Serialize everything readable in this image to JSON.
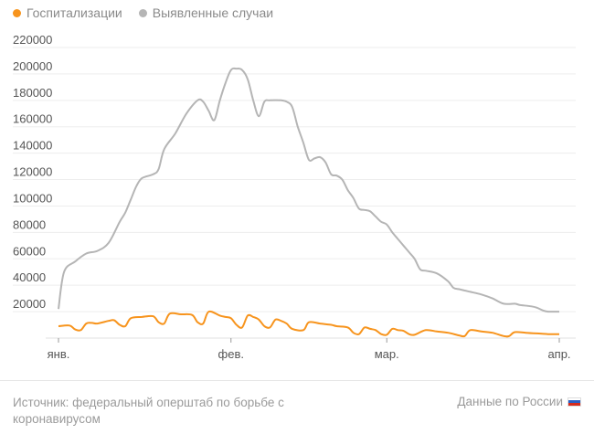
{
  "legend": {
    "items": [
      {
        "label": "Госпитализации",
        "color": "#f7941d"
      },
      {
        "label": "Выявленные случаи",
        "color": "#b5b5b5"
      }
    ]
  },
  "footer": {
    "source": "Источник: федеральный оперштаб по борьбе с коронавирусом",
    "region": "Данные по России",
    "flag_icon": "russia-flag-icon"
  },
  "chart_data": {
    "type": "line",
    "x_ticks": [
      {
        "label": "янв.",
        "day": 0
      },
      {
        "label": "фев.",
        "day": 31
      },
      {
        "label": "мар.",
        "day": 59
      },
      {
        "label": "апр.",
        "day": 90
      }
    ],
    "y_ticks": [
      20000,
      40000,
      60000,
      80000,
      100000,
      120000,
      140000,
      160000,
      180000,
      200000,
      220000
    ],
    "ylim": [
      0,
      220000
    ],
    "series": [
      {
        "name": "Выявленные случаи",
        "color": "#b5b5b5",
        "values": [
          [
            0,
            22000
          ],
          [
            1,
            50000
          ],
          [
            3,
            58000
          ],
          [
            5,
            64000
          ],
          [
            7,
            66000
          ],
          [
            9,
            72000
          ],
          [
            11,
            88000
          ],
          [
            12,
            95000
          ],
          [
            13,
            105000
          ],
          [
            14,
            115000
          ],
          [
            15,
            121000
          ],
          [
            17,
            124000
          ],
          [
            18,
            128000
          ],
          [
            19,
            143000
          ],
          [
            21,
            155000
          ],
          [
            23,
            170000
          ],
          [
            25,
            180000
          ],
          [
            26,
            179000
          ],
          [
            27,
            172000
          ],
          [
            28,
            165000
          ],
          [
            29,
            180000
          ],
          [
            30,
            193000
          ],
          [
            31,
            203000
          ],
          [
            32,
            204000
          ],
          [
            33,
            203000
          ],
          [
            34,
            196000
          ],
          [
            35,
            180000
          ],
          [
            36,
            168000
          ],
          [
            37,
            179000
          ],
          [
            38,
            180000
          ],
          [
            40,
            180000
          ],
          [
            41,
            179000
          ],
          [
            42,
            175000
          ],
          [
            43,
            160000
          ],
          [
            44,
            148000
          ],
          [
            45,
            135000
          ],
          [
            46,
            136000
          ],
          [
            47,
            137000
          ],
          [
            48,
            133000
          ],
          [
            49,
            124000
          ],
          [
            50,
            123000
          ],
          [
            51,
            120000
          ],
          [
            52,
            112000
          ],
          [
            53,
            106000
          ],
          [
            54,
            98000
          ],
          [
            55,
            97000
          ],
          [
            56,
            96000
          ],
          [
            57,
            92000
          ],
          [
            58,
            88000
          ],
          [
            59,
            86000
          ],
          [
            60,
            80000
          ],
          [
            61,
            75000
          ],
          [
            62,
            70000
          ],
          [
            63,
            65000
          ],
          [
            64,
            60000
          ],
          [
            65,
            52000
          ],
          [
            66,
            51000
          ],
          [
            68,
            49000
          ],
          [
            70,
            43000
          ],
          [
            71,
            38000
          ],
          [
            72,
            37000
          ],
          [
            73,
            36000
          ],
          [
            74,
            35000
          ],
          [
            76,
            33000
          ],
          [
            78,
            30000
          ],
          [
            80,
            26000
          ],
          [
            82,
            26000
          ],
          [
            83,
            25000
          ],
          [
            85,
            24000
          ],
          [
            86,
            23000
          ],
          [
            87,
            21000
          ],
          [
            88,
            20000
          ],
          [
            90,
            20000
          ]
        ]
      },
      {
        "name": "Госпитализации",
        "color": "#f7941d",
        "values": [
          [
            0,
            9000
          ],
          [
            2,
            9500
          ],
          [
            3,
            6500
          ],
          [
            4,
            6000
          ],
          [
            5,
            11000
          ],
          [
            6,
            11500
          ],
          [
            7,
            11000
          ],
          [
            9,
            13000
          ],
          [
            10,
            13500
          ],
          [
            11,
            10000
          ],
          [
            12,
            9000
          ],
          [
            13,
            15000
          ],
          [
            15,
            16000
          ],
          [
            17,
            16500
          ],
          [
            18,
            12000
          ],
          [
            19,
            11000
          ],
          [
            20,
            18500
          ],
          [
            22,
            18000
          ],
          [
            24,
            17500
          ],
          [
            25,
            12000
          ],
          [
            26,
            11000
          ],
          [
            27,
            20000
          ],
          [
            29,
            17000
          ],
          [
            30,
            16000
          ],
          [
            31,
            15000
          ],
          [
            32,
            10000
          ],
          [
            33,
            8000
          ],
          [
            34,
            17000
          ],
          [
            35,
            16000
          ],
          [
            36,
            14000
          ],
          [
            37,
            9000
          ],
          [
            38,
            8000
          ],
          [
            39,
            14000
          ],
          [
            40,
            13000
          ],
          [
            41,
            11000
          ],
          [
            42,
            7000
          ],
          [
            44,
            6000
          ],
          [
            45,
            12000
          ],
          [
            47,
            11000
          ],
          [
            49,
            10000
          ],
          [
            50,
            9000
          ],
          [
            52,
            8000
          ],
          [
            53,
            4000
          ],
          [
            54,
            3000
          ],
          [
            55,
            8000
          ],
          [
            56,
            7000
          ],
          [
            57,
            6000
          ],
          [
            58,
            3000
          ],
          [
            59,
            2500
          ],
          [
            60,
            7000
          ],
          [
            61,
            6000
          ],
          [
            62,
            5500
          ],
          [
            63,
            3000
          ],
          [
            64,
            2500
          ],
          [
            66,
            6000
          ],
          [
            68,
            5000
          ],
          [
            70,
            4000
          ],
          [
            72,
            2000
          ],
          [
            73,
            1500
          ],
          [
            74,
            6000
          ],
          [
            76,
            5000
          ],
          [
            78,
            4000
          ],
          [
            80,
            1500
          ],
          [
            81,
            1500
          ],
          [
            82,
            4500
          ],
          [
            84,
            4000
          ],
          [
            86,
            3500
          ],
          [
            88,
            3000
          ],
          [
            90,
            3000
          ]
        ]
      }
    ]
  }
}
